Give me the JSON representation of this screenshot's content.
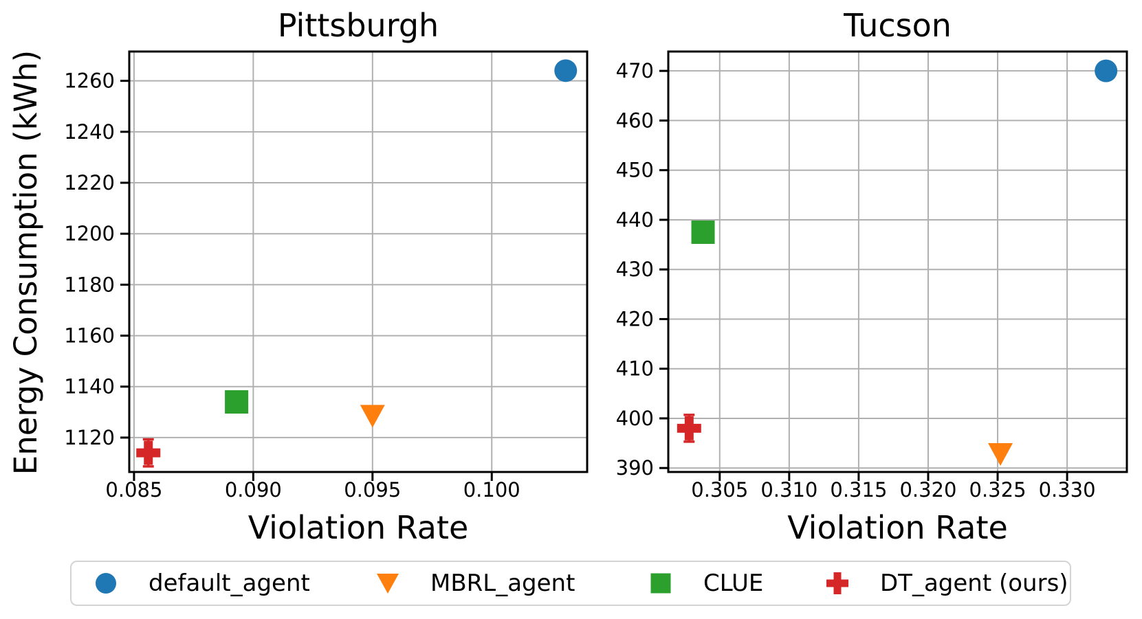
{
  "figure": {
    "background": "#ffffff",
    "shared_ylabel": "Energy Consumption (kWh)"
  },
  "legend": {
    "items": [
      {
        "label": "default_agent",
        "marker": "circle",
        "color": "#1f77b4"
      },
      {
        "label": "MBRL_agent",
        "marker": "triangle_down",
        "color": "#ff7f0e"
      },
      {
        "label": "CLUE",
        "marker": "square",
        "color": "#2ca02c"
      },
      {
        "label": "DT_agent (ours)",
        "marker": "plus_filled",
        "color": "#d62728"
      }
    ]
  },
  "chart_data": [
    {
      "type": "scatter",
      "title": "Pittsburgh",
      "xlabel": "Violation Rate",
      "ylabel": "Energy Consumption (kWh)",
      "xlim": [
        0.0848,
        0.104
      ],
      "ylim": [
        1106.5,
        1271.5
      ],
      "xticks": [
        0.085,
        0.09,
        0.095,
        0.1
      ],
      "xtick_labels": [
        "0.085",
        "0.090",
        "0.095",
        "0.100"
      ],
      "yticks": [
        1120,
        1140,
        1160,
        1180,
        1200,
        1220,
        1240,
        1260
      ],
      "ytick_labels": [
        "1120",
        "1140",
        "1160",
        "1180",
        "1200",
        "1220",
        "1240",
        "1260"
      ],
      "grid": true,
      "grid_color": "#b0b0b0",
      "legend_position": "below-figure",
      "series": [
        {
          "name": "default_agent",
          "marker": "circle",
          "color": "#1f77b4",
          "points": [
            {
              "x": 0.1031,
              "y": 1264
            }
          ]
        },
        {
          "name": "MBRL_agent",
          "marker": "triangle_down",
          "color": "#ff7f0e",
          "points": [
            {
              "x": 0.095,
              "y": 1128.5
            }
          ]
        },
        {
          "name": "CLUE",
          "marker": "square",
          "color": "#2ca02c",
          "points": [
            {
              "x": 0.0893,
              "y": 1134
            }
          ]
        },
        {
          "name": "DT_agent (ours)",
          "marker": "plus_filled",
          "color": "#d62728",
          "points": [
            {
              "x": 0.0856,
              "y": 1114,
              "yerr": 5.3
            }
          ]
        }
      ]
    },
    {
      "type": "scatter",
      "title": "Tucson",
      "xlabel": "Violation Rate",
      "ylabel": "",
      "xlim": [
        0.3013,
        0.3343
      ],
      "ylim": [
        389.2,
        473.9
      ],
      "xticks": [
        0.305,
        0.31,
        0.315,
        0.32,
        0.325,
        0.33
      ],
      "xtick_labels": [
        "0.305",
        "0.310",
        "0.315",
        "0.320",
        "0.325",
        "0.330"
      ],
      "yticks": [
        390,
        400,
        410,
        420,
        430,
        440,
        450,
        460,
        470
      ],
      "ytick_labels": [
        "390",
        "400",
        "410",
        "420",
        "430",
        "440",
        "450",
        "460",
        "470"
      ],
      "grid": true,
      "grid_color": "#b0b0b0",
      "series": [
        {
          "name": "default_agent",
          "marker": "circle",
          "color": "#1f77b4",
          "points": [
            {
              "x": 0.3328,
              "y": 470
            }
          ]
        },
        {
          "name": "MBRL_agent",
          "marker": "triangle_down",
          "color": "#ff7f0e",
          "points": [
            {
              "x": 0.3252,
              "y": 392.8
            }
          ]
        },
        {
          "name": "CLUE",
          "marker": "square",
          "color": "#2ca02c",
          "points": [
            {
              "x": 0.3038,
              "y": 437.5
            }
          ]
        },
        {
          "name": "DT_agent (ours)",
          "marker": "plus_filled",
          "color": "#d62728",
          "points": [
            {
              "x": 0.3028,
              "y": 398,
              "yerr": 2.7
            }
          ]
        }
      ]
    }
  ]
}
